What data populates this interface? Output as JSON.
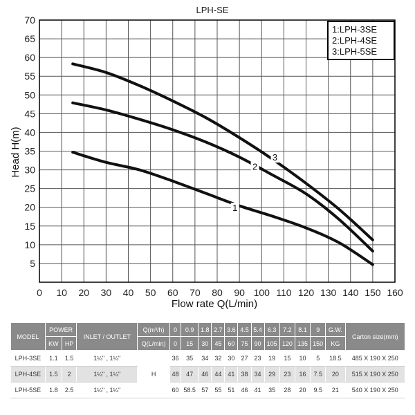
{
  "chart_data": {
    "type": "line",
    "title": "LPH-SE",
    "xlabel": "Flow rate Q(L/min)",
    "ylabel": "Head H(m)",
    "xlim": [
      0,
      160
    ],
    "ylim": [
      0,
      70
    ],
    "xticks": [
      0,
      10,
      20,
      30,
      40,
      50,
      60,
      70,
      80,
      90,
      100,
      110,
      120,
      130,
      140,
      150,
      160
    ],
    "yticks": [
      5,
      10,
      15,
      20,
      25,
      30,
      35,
      40,
      45,
      50,
      55,
      60,
      65,
      70
    ],
    "grid": true,
    "legend_position": "top-right",
    "legend": [
      "1:LPH-3SE",
      "2:LPH-4SE",
      "3:LPH-5SE"
    ],
    "series": [
      {
        "label": "1",
        "x": [
          15,
          30,
          45,
          60,
          75,
          90,
          105,
          120,
          135,
          150
        ],
        "y": [
          34.7,
          32,
          30,
          27,
          23.7,
          20.4,
          17.6,
          14.5,
          10.5,
          4.7
        ]
      },
      {
        "label": "2",
        "x": [
          15,
          30,
          45,
          60,
          75,
          90,
          105,
          120,
          135,
          150
        ],
        "y": [
          47.9,
          46,
          43.5,
          40.7,
          37.4,
          33.4,
          28.6,
          23.6,
          16.7,
          8.3
        ]
      },
      {
        "label": "3",
        "x": [
          15,
          30,
          45,
          60,
          75,
          90,
          105,
          120,
          135,
          150
        ],
        "y": [
          58.3,
          56,
          52.5,
          48.4,
          43.9,
          38.6,
          32.8,
          26.4,
          19.4,
          11.3
        ]
      }
    ],
    "curve_label_positions": [
      {
        "label": "1",
        "x": 88,
        "y": 19
      },
      {
        "label": "2",
        "x": 97,
        "y": 30
      },
      {
        "label": "3",
        "x": 106,
        "y": 32.5
      }
    ]
  },
  "table": {
    "model_header": "MODEL",
    "power_header": "POWER",
    "kw_header": "KW",
    "hp_header": "HP",
    "inlet_header": "INLET / OUTLET",
    "q_m3h_header": "Q(m³/h)",
    "q_lmin_header": "Q(L/min)",
    "q_m3h": [
      "0",
      "0.9",
      "1.8",
      "2.7",
      "3.6",
      "4.5",
      "5.4",
      "6.3",
      "7.2",
      "8.1",
      "9"
    ],
    "q_lmin": [
      "0",
      "15",
      "30",
      "45",
      "60",
      "75",
      "90",
      "105",
      "120",
      "135",
      "150"
    ],
    "gw_header": "G.W.",
    "kg_header": "KG",
    "carton_header": "Carton size(mm)",
    "h_label": "H",
    "rows": [
      {
        "model": "LPH-3SE",
        "kw": "1.1",
        "hp": "1.5",
        "inlet": "1¼\" , 1¼\"",
        "head": [
          "36",
          "35",
          "34",
          "32",
          "30",
          "27",
          "23",
          "19",
          "15",
          "10",
          "5"
        ],
        "gw": "18.5",
        "carton": "485 X 190 X 250"
      },
      {
        "model": "LPH-4SE",
        "kw": "1.5",
        "hp": "2",
        "inlet": "1¼\" , 1¼\"",
        "head": [
          "48",
          "47",
          "46",
          "44",
          "41",
          "38",
          "34",
          "29",
          "23",
          "16",
          "7.5"
        ],
        "gw": "20",
        "carton": "515 X 190 X 250"
      },
      {
        "model": "LPH-5SE",
        "kw": "1.8",
        "hp": "2.5",
        "inlet": "1¼\" , 1¼\"",
        "head": [
          "60",
          "58.5",
          "57",
          "55",
          "51",
          "46",
          "41",
          "35",
          "28",
          "20",
          "9.5"
        ],
        "gw": "21",
        "carton": "540 X 190 X 250"
      }
    ]
  }
}
